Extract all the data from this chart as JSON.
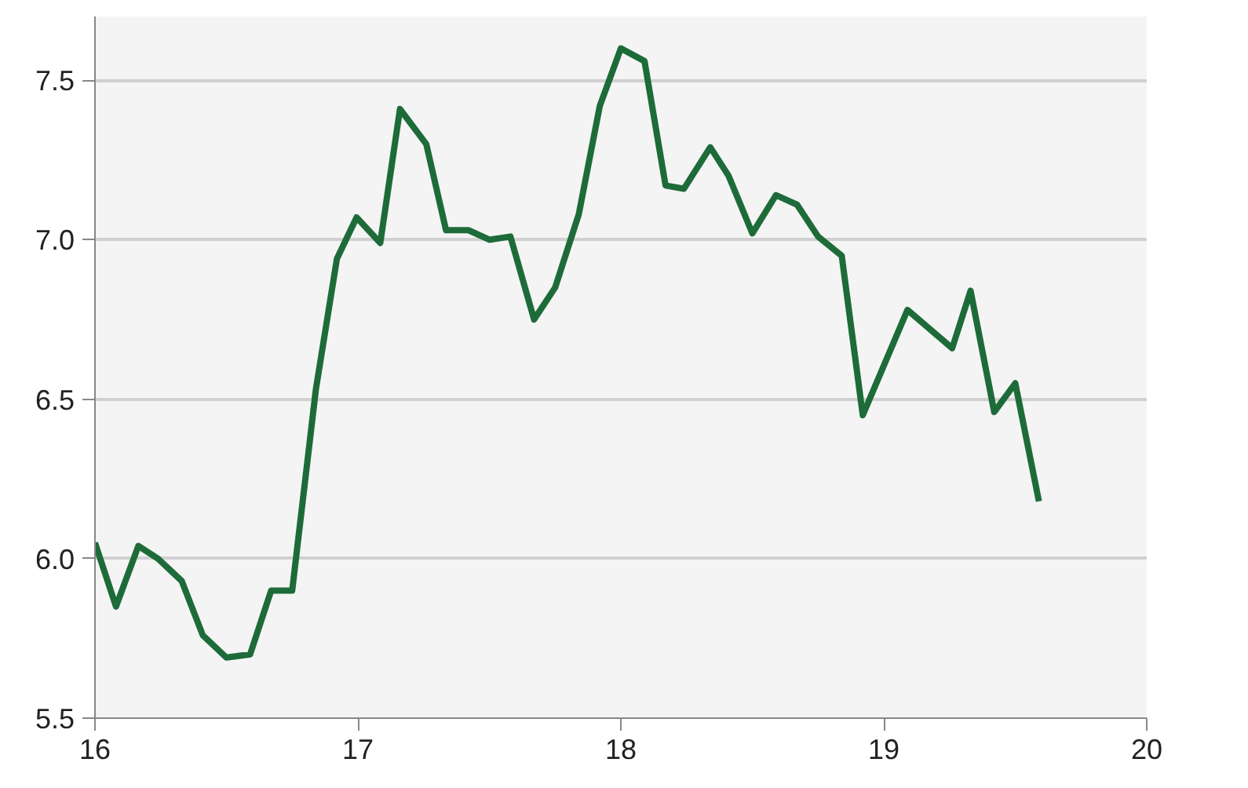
{
  "chart_data": {
    "type": "line",
    "x": [
      16.0,
      16.08,
      16.165,
      16.24,
      16.33,
      16.41,
      16.5,
      16.59,
      16.67,
      16.75,
      16.84,
      16.92,
      16.995,
      17.085,
      17.16,
      17.26,
      17.335,
      17.42,
      17.5,
      17.58,
      17.67,
      17.75,
      17.84,
      17.92,
      18.0,
      18.09,
      18.17,
      18.24,
      18.34,
      18.41,
      18.5,
      18.59,
      18.67,
      18.75,
      18.84,
      18.92,
      19.09,
      19.26,
      19.33,
      19.42,
      19.5,
      19.59
    ],
    "series": [
      {
        "color": "#1e6b3a",
        "values": [
          6.05,
          5.85,
          6.04,
          6.0,
          5.93,
          5.76,
          5.69,
          5.7,
          5.9,
          5.9,
          6.53,
          6.94,
          7.07,
          6.99,
          7.41,
          7.3,
          7.03,
          7.03,
          7.0,
          7.01,
          6.75,
          6.85,
          7.08,
          7.42,
          7.6,
          7.56,
          7.17,
          7.16,
          7.29,
          7.2,
          7.02,
          7.14,
          7.11,
          7.01,
          6.95,
          6.45,
          6.78,
          6.66,
          6.84,
          6.46,
          6.55,
          6.18
        ]
      }
    ],
    "xlim": [
      16,
      20
    ],
    "xticks": [
      16,
      17,
      18,
      19,
      20
    ],
    "ylim": [
      5.5,
      7.7
    ],
    "yticks": [
      5.5,
      {
        "value": 6,
        "label": "6.0"
      },
      6.5,
      {
        "value": 7,
        "label": "7.0"
      },
      7.5
    ],
    "grid": "y",
    "marker": "none",
    "line_style": "solid"
  }
}
